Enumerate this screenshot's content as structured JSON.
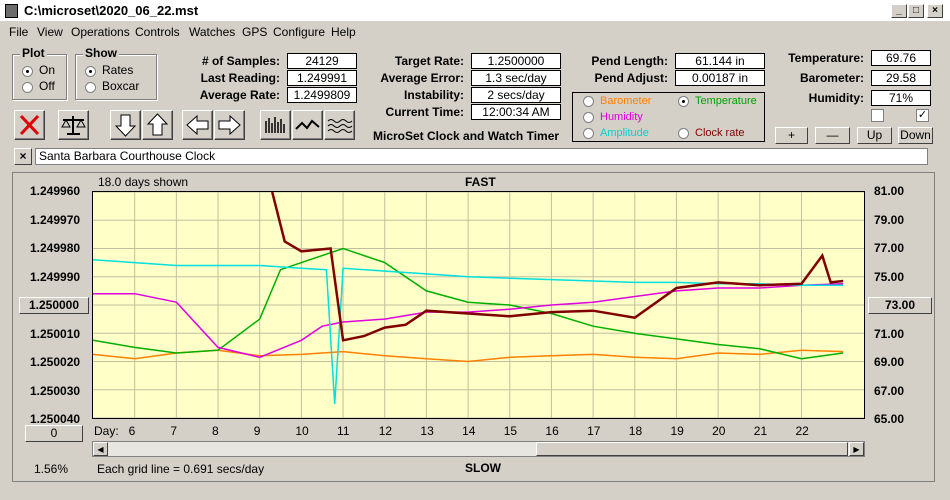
{
  "window": {
    "title": "C:\\microset\\2020_06_22.mst"
  },
  "menu": [
    "File",
    "View",
    "Operations",
    "Controls",
    "Watches",
    "GPS",
    "Configure",
    "Help"
  ],
  "plot": {
    "label": "Plot",
    "on": "On",
    "off": "Off",
    "selected": "On"
  },
  "show": {
    "label": "Show",
    "rates": "Rates",
    "boxcar": "Boxcar",
    "selected": "Rates"
  },
  "stats": {
    "samples_label": "# of Samples:",
    "samples": "24129",
    "last_label": "Last Reading:",
    "last": "1.249991",
    "avg_label": "Average Rate:",
    "avg": "1.2499809",
    "target_label": "Target Rate:",
    "target": "1.2500000",
    "err_label": "Average Error:",
    "err": "1.3 sec/day",
    "inst_label": "Instability:",
    "inst": "2 secs/day",
    "time_label": "Current Time:",
    "time": "12:00:34 AM",
    "pendlen_label": "Pend Length:",
    "pendlen": "61.144 in",
    "pendadj_label": "Pend Adjust:",
    "pendadj": "0.00187 in",
    "temp_label": "Temperature:",
    "temp": "69.76",
    "baro_label": "Barometer:",
    "baro": "29.58",
    "hum_label": "Humidity:",
    "hum": "71%"
  },
  "app_caption": "MicroSet Clock and Watch Timer",
  "legend": {
    "barometer": "Barometer",
    "temperature": "Temperature",
    "humidity": "Humidity",
    "amplitude": "Amplitude",
    "clockrate": "Clock rate",
    "selected": "Temperature"
  },
  "small_buttons": {
    "plus": "+",
    "minus": "—",
    "up": "Up",
    "down": "Down"
  },
  "clock_name": "Santa Barbara Courthouse Clock",
  "close_x": "×",
  "chart_header": {
    "days_shown": "18.0 days shown",
    "fast": "FAST",
    "slow": "SLOW",
    "grid_note": "Each grid line = 0.691 secs/day",
    "percent": "1.56%",
    "day_label": "Day:"
  },
  "left_button": "1.250000",
  "right_button": "73.00",
  "zero_button": "0",
  "colors": {
    "barometer": "#ff8000",
    "temperature": "#00b000",
    "humidity": "#e000e0",
    "amplitude": "#00e0e0",
    "clockrate": "#800000"
  },
  "chart_data": {
    "type": "line",
    "x_label": "Day",
    "x_ticks": [
      6,
      7,
      8,
      9,
      10,
      11,
      12,
      13,
      14,
      15,
      16,
      17,
      18,
      19,
      20,
      21,
      22
    ],
    "xlim": [
      5,
      23.5
    ],
    "y_left_ticks": [
      "1.249960",
      "1.249970",
      "1.249980",
      "1.249990",
      "1.250000",
      "1.250010",
      "1.250020",
      "1.250030",
      "1.250040"
    ],
    "y_left_lim": [
      1.24996,
      1.25004
    ],
    "y_right_ticks": [
      "81.00",
      "79.00",
      "77.00",
      "75.00",
      "73.00",
      "71.00",
      "69.00",
      "67.00",
      "65.00"
    ],
    "y_right_lim": [
      65,
      81
    ],
    "series": [
      {
        "name": "Barometer",
        "color": "#ff8000",
        "x": [
          5,
          6,
          7,
          8,
          9,
          10,
          11,
          12,
          13,
          14,
          15,
          16,
          17,
          18,
          19,
          20,
          21,
          22,
          23
        ],
        "y": [
          69.5,
          69.2,
          69.6,
          69.8,
          69.4,
          69.5,
          69.7,
          69.4,
          69.2,
          69.0,
          69.3,
          69.4,
          69.5,
          69.3,
          69.2,
          69.6,
          69.5,
          69.8,
          69.7
        ]
      },
      {
        "name": "Temperature",
        "color": "#00b000",
        "x": [
          5,
          6,
          7,
          8,
          9,
          9.5,
          10,
          11,
          12,
          13,
          14,
          15,
          16,
          17,
          18,
          19,
          20,
          21,
          22,
          23
        ],
        "y": [
          70.5,
          70.0,
          69.6,
          69.8,
          72.0,
          75.5,
          76.0,
          77.0,
          76.0,
          74.0,
          73.2,
          73.0,
          72.4,
          71.5,
          71.0,
          70.6,
          70.2,
          69.9,
          69.2,
          69.6
        ]
      },
      {
        "name": "Humidity",
        "color": "#e000e0",
        "x": [
          5,
          6,
          7,
          8,
          9,
          10,
          10.5,
          11,
          12,
          13,
          14,
          15,
          16,
          17,
          18,
          19,
          20,
          21,
          22,
          23
        ],
        "y": [
          73.8,
          73.8,
          73.2,
          70.0,
          69.3,
          70.5,
          71.5,
          71.8,
          72.0,
          72.5,
          72.5,
          72.7,
          73.0,
          73.2,
          73.6,
          74.0,
          74.2,
          74.2,
          74.4,
          74.5
        ]
      },
      {
        "name": "Amplitude",
        "color": "#00e0e0",
        "x": [
          5,
          6,
          7,
          8,
          9,
          10,
          10.6,
          10.8,
          11,
          12,
          13,
          14,
          15,
          16,
          17,
          18,
          19,
          20,
          21,
          22,
          23
        ],
        "y": [
          76.2,
          76.0,
          75.8,
          75.8,
          75.8,
          75.6,
          75.5,
          66.0,
          75.6,
          75.4,
          75.2,
          75.0,
          74.9,
          74.8,
          74.7,
          74.6,
          74.6,
          74.5,
          74.5,
          74.4,
          74.4
        ]
      },
      {
        "name": "Clock rate",
        "color": "#800000",
        "x": [
          9.3,
          9.6,
          10,
          10.7,
          11,
          11.5,
          12,
          12.5,
          13,
          14,
          15,
          16,
          17,
          18,
          19,
          20,
          21,
          22,
          22.5,
          22.7,
          23
        ],
        "y": [
          81,
          77.5,
          76.8,
          77.0,
          70.5,
          70.8,
          71.4,
          71.6,
          72.6,
          72.4,
          72.2,
          72.5,
          72.6,
          72.1,
          74.2,
          74.6,
          74.4,
          74.5,
          76.5,
          74.6,
          74.7
        ]
      }
    ]
  }
}
